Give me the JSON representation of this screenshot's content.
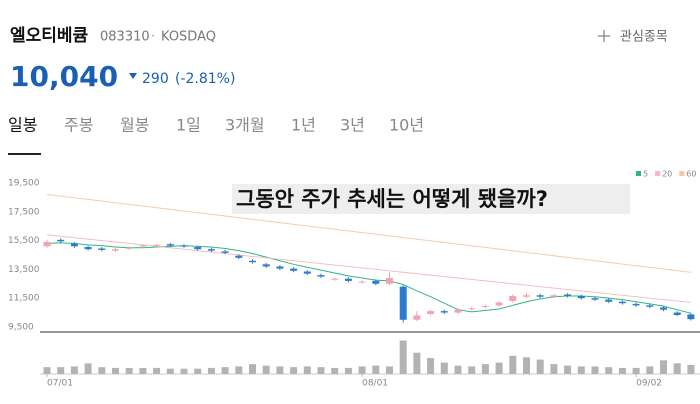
{
  "header": {
    "name": "엘오티베큠",
    "code": "083310",
    "market": "KOSDAQ",
    "watch_button": "관심종목"
  },
  "quote": {
    "price": "10,040",
    "change": "290",
    "change_rate": "(-2.81%)"
  },
  "tabs": [
    "일봉",
    "주봉",
    "월봉",
    "1일",
    "3개월",
    "1년",
    "3년",
    "10년"
  ],
  "chart_data": {
    "type": "candlestick",
    "annotation": "그동안 주가 추세는 어떻게 됐을까?",
    "categories": [
      "07/01",
      null,
      null,
      null,
      null,
      null,
      null,
      null,
      null,
      null,
      null,
      null,
      null,
      null,
      null,
      null,
      null,
      null,
      null,
      null,
      null,
      null,
      null,
      "08/01",
      null,
      null,
      null,
      null,
      null,
      null,
      null,
      null,
      null,
      null,
      null,
      null,
      null,
      null,
      null,
      null,
      null,
      null,
      null,
      "09/02",
      null,
      null,
      null,
      null
    ],
    "open": [
      15100,
      15550,
      15300,
      15050,
      14950,
      14800,
      14950,
      15100,
      15200,
      15250,
      15150,
      15050,
      14900,
      14750,
      14450,
      14100,
      13850,
      13700,
      13550,
      13350,
      13100,
      12800,
      12850,
      12600,
      12700,
      12500,
      12300,
      10000,
      10400,
      10600,
      10500,
      10750,
      10900,
      11000,
      11300,
      11600,
      11700,
      11600,
      11750,
      11650,
      11500,
      11400,
      11250,
      11100,
      11000,
      10850,
      10500,
      10370
    ],
    "high": [
      15550,
      15650,
      15400,
      15150,
      15050,
      15000,
      15100,
      15250,
      15300,
      15350,
      15250,
      15150,
      15000,
      14850,
      14550,
      14200,
      13950,
      13800,
      13650,
      13450,
      13200,
      12950,
      12950,
      12750,
      12800,
      13300,
      12400,
      10600,
      10700,
      10700,
      10800,
      10900,
      11050,
      11300,
      11750,
      11850,
      11800,
      11800,
      11850,
      11750,
      11600,
      11500,
      11350,
      11200,
      11100,
      10950,
      10600,
      10450
    ],
    "low": [
      15000,
      15350,
      15000,
      14800,
      14750,
      14700,
      14850,
      15000,
      15100,
      15050,
      15000,
      14800,
      14700,
      14550,
      14200,
      13900,
      13600,
      13450,
      13300,
      13100,
      12900,
      12700,
      12600,
      12500,
      12400,
      12400,
      9800,
      9900,
      10300,
      10400,
      10400,
      10650,
      10800,
      10900,
      11200,
      11500,
      11500,
      11500,
      11550,
      11400,
      11300,
      11150,
      11050,
      10900,
      10800,
      10600,
      10250,
      9950
    ],
    "close": [
      15400,
      15450,
      15100,
      14900,
      14850,
      14900,
      15000,
      15150,
      15200,
      15150,
      15100,
      14900,
      14800,
      14650,
      14300,
      14000,
      13700,
      13550,
      13400,
      13200,
      13000,
      12850,
      12700,
      12650,
      12500,
      12900,
      10000,
      10300,
      10600,
      10500,
      10700,
      10800,
      10950,
      11200,
      11650,
      11700,
      11600,
      11700,
      11650,
      11500,
      11400,
      11250,
      11150,
      11000,
      10900,
      10700,
      10330,
      10040
    ],
    "up_color": "#f2a2b4",
    "down_color": "#2b7cd0",
    "series": [
      {
        "name": "5",
        "color": "#2fb87a",
        "values": [
          15300,
          15350,
          15300,
          15200,
          15150,
          15050,
          15000,
          15000,
          15050,
          15100,
          15150,
          15100,
          15050,
          14950,
          14800,
          14600,
          14350,
          14100,
          13850,
          13650,
          13450,
          13250,
          13050,
          12900,
          12750,
          12700,
          12450,
          12000,
          11600,
          11150,
          10700,
          10550,
          10650,
          10750,
          11000,
          11250,
          11450,
          11600,
          11650,
          11650,
          11600,
          11500,
          11400,
          11250,
          11100,
          10950,
          10700,
          10450
        ]
      },
      {
        "name": "20",
        "color": "#f4b6c2",
        "values": [
          15900,
          15800,
          15700,
          15600,
          15500,
          15400,
          15300,
          15200,
          15100,
          15000,
          14900,
          14800,
          14700,
          14600,
          14500,
          14400,
          14300,
          14200,
          14100,
          14000,
          13900,
          13800,
          13700,
          13600,
          13500,
          13400,
          13300,
          13200,
          13100,
          13000,
          12900,
          12800,
          12700,
          12600,
          12500,
          12400,
          12300,
          12200,
          12100,
          12000,
          11900,
          11800,
          11700,
          11600,
          11500,
          11400,
          11300,
          11200
        ]
      },
      {
        "name": "60",
        "color": "#f7c4a8",
        "values": [
          18700,
          18585,
          18470,
          18355,
          18240,
          18125,
          18010,
          17895,
          17780,
          17665,
          17550,
          17435,
          17320,
          17205,
          17090,
          16975,
          16860,
          16745,
          16630,
          16515,
          16400,
          16285,
          16170,
          16055,
          15940,
          15825,
          15710,
          15595,
          15480,
          15365,
          15250,
          15135,
          15020,
          14905,
          14790,
          14675,
          14560,
          14445,
          14330,
          14215,
          14100,
          13985,
          13870,
          13755,
          13640,
          13525,
          13410,
          13295
        ]
      }
    ],
    "volume": [
      180,
      180,
      200,
      280,
      180,
      160,
      160,
      160,
      160,
      140,
      140,
      140,
      160,
      180,
      200,
      260,
      220,
      200,
      180,
      200,
      180,
      160,
      160,
      200,
      220,
      200,
      880,
      560,
      420,
      300,
      220,
      200,
      260,
      300,
      480,
      440,
      380,
      260,
      220,
      200,
      200,
      180,
      160,
      160,
      200,
      360,
      280,
      240
    ],
    "volume_color": "#b3b3b3",
    "volume_lim": [
      0,
      1000
    ],
    "ylim": [
      9150,
      20400
    ],
    "yticks": [
      {
        "value": 19500,
        "label": "19,500"
      },
      {
        "value": 17500,
        "label": "17,500"
      },
      {
        "value": 15500,
        "label": "15,500"
      },
      {
        "value": 13500,
        "label": "13,500"
      },
      {
        "value": 11500,
        "label": "11,500"
      },
      {
        "value": 9500,
        "label": "9,500"
      }
    ]
  }
}
